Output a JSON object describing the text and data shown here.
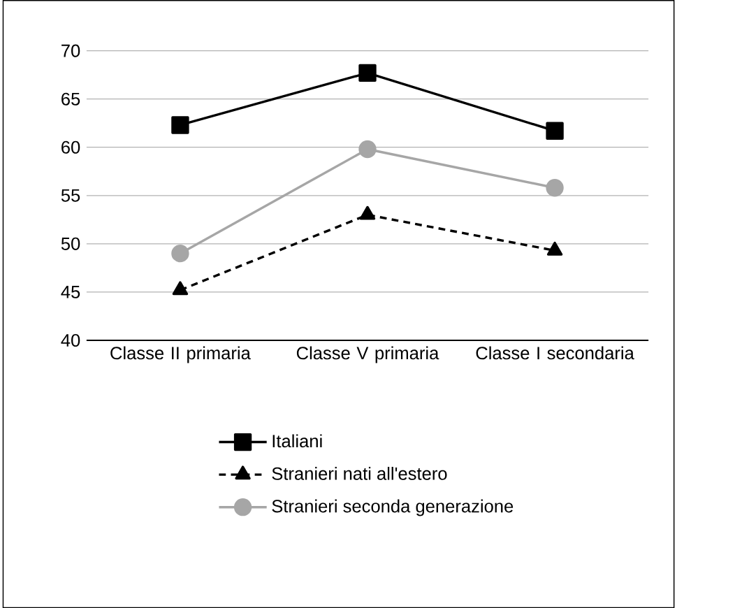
{
  "chart_data": {
    "type": "line",
    "categories": [
      "Classe II primaria",
      "Classe V primaria",
      "Classe I secondaria"
    ],
    "series": [
      {
        "name": "Italiani",
        "color": "#000000",
        "marker": "square",
        "line_style": "solid",
        "values": [
          62.3,
          67.7,
          61.7
        ]
      },
      {
        "name": "Stranieri nati all'estero",
        "color": "#000000",
        "marker": "triangle",
        "line_style": "dashed",
        "values": [
          45.2,
          53.0,
          49.3
        ]
      },
      {
        "name": "Stranieri seconda generazione",
        "color": "#a6a6a6",
        "marker": "circle",
        "line_style": "solid",
        "values": [
          49.0,
          59.8,
          55.8
        ]
      }
    ],
    "ylim": [
      40,
      70
    ],
    "yticks": [
      40,
      45,
      50,
      55,
      60,
      65,
      70
    ],
    "grid": "y",
    "legend": "bottom"
  }
}
